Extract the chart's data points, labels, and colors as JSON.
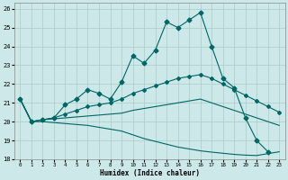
{
  "xlabel": "Humidex (Indice chaleur)",
  "xlim": [
    -0.5,
    23.5
  ],
  "ylim": [
    18,
    26.3
  ],
  "yticks": [
    18,
    19,
    20,
    21,
    22,
    23,
    24,
    25,
    26
  ],
  "xticks": [
    0,
    1,
    2,
    3,
    4,
    5,
    6,
    7,
    8,
    9,
    10,
    11,
    12,
    13,
    14,
    15,
    16,
    17,
    18,
    19,
    20,
    21,
    22,
    23
  ],
  "bg_color": "#cce8e8",
  "grid_color": "#aacccc",
  "line_color": "#006666",
  "line1_x": [
    0,
    1,
    2,
    3,
    4,
    5,
    6,
    7,
    8,
    9,
    10,
    11,
    12,
    13,
    14,
    15,
    16,
    17,
    18,
    19,
    20,
    21,
    22
  ],
  "line1_y": [
    21.2,
    20.0,
    20.1,
    20.2,
    20.9,
    21.2,
    21.7,
    21.5,
    21.2,
    22.1,
    23.5,
    23.1,
    23.8,
    25.3,
    25.0,
    25.4,
    25.8,
    24.0,
    22.3,
    21.8,
    20.2,
    19.0,
    18.4
  ],
  "line2_x": [
    0,
    1,
    2,
    3,
    4,
    5,
    6,
    7,
    8,
    9,
    10,
    11,
    12,
    13,
    14,
    15,
    16,
    17,
    18,
    19,
    20,
    21,
    22,
    23
  ],
  "line2_y": [
    21.2,
    20.0,
    20.1,
    20.2,
    20.4,
    20.6,
    20.8,
    20.9,
    21.0,
    21.2,
    21.5,
    21.7,
    21.9,
    22.1,
    22.3,
    22.4,
    22.5,
    22.3,
    22.0,
    21.7,
    21.4,
    21.1,
    20.8,
    20.5
  ],
  "line3_x": [
    0,
    1,
    2,
    3,
    4,
    5,
    6,
    7,
    8,
    9,
    10,
    11,
    12,
    13,
    14,
    15,
    16,
    17,
    18,
    19,
    20,
    21,
    22,
    23
  ],
  "line3_y": [
    21.2,
    20.0,
    20.1,
    20.15,
    20.2,
    20.25,
    20.3,
    20.35,
    20.4,
    20.45,
    20.6,
    20.7,
    20.8,
    20.9,
    21.0,
    21.1,
    21.2,
    21.0,
    20.8,
    20.6,
    20.4,
    20.2,
    20.0,
    19.8
  ],
  "line4_x": [
    0,
    1,
    2,
    3,
    4,
    5,
    6,
    7,
    8,
    9,
    10,
    11,
    12,
    13,
    14,
    15,
    16,
    17,
    18,
    19,
    20,
    21,
    22,
    23
  ],
  "line4_y": [
    21.2,
    20.0,
    20.0,
    19.95,
    19.9,
    19.85,
    19.8,
    19.7,
    19.6,
    19.5,
    19.3,
    19.1,
    18.95,
    18.8,
    18.65,
    18.55,
    18.45,
    18.38,
    18.32,
    18.26,
    18.22,
    18.2,
    18.3,
    18.4
  ]
}
